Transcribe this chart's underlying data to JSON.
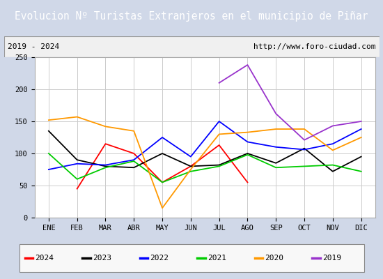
{
  "title": "Evolucion Nº Turistas Extranjeros en el municipio de Piñar",
  "subtitle_left": "2019 - 2024",
  "subtitle_right": "http://www.foro-ciudad.com",
  "months": [
    "ENE",
    "FEB",
    "MAR",
    "ABR",
    "MAY",
    "JUN",
    "JUL",
    "AGO",
    "SEP",
    "OCT",
    "NOV",
    "DIC"
  ],
  "series": {
    "2024": {
      "color": "#ff0000",
      "data": [
        null,
        45,
        115,
        100,
        55,
        80,
        113,
        55,
        null,
        null,
        null,
        null
      ]
    },
    "2023": {
      "color": "#000000",
      "data": [
        135,
        90,
        80,
        78,
        100,
        80,
        82,
        100,
        85,
        108,
        72,
        95
      ]
    },
    "2022": {
      "color": "#0000ff",
      "data": [
        75,
        84,
        82,
        90,
        125,
        95,
        150,
        118,
        110,
        106,
        115,
        138
      ]
    },
    "2021": {
      "color": "#00cc00",
      "data": [
        100,
        60,
        78,
        88,
        55,
        72,
        80,
        98,
        78,
        80,
        82,
        72
      ]
    },
    "2020": {
      "color": "#ff9900",
      "data": [
        152,
        157,
        142,
        135,
        15,
        75,
        130,
        133,
        138,
        138,
        105,
        125
      ]
    },
    "2019": {
      "color": "#9933cc",
      "data": [
        null,
        null,
        null,
        null,
        null,
        null,
        210,
        238,
        162,
        121,
        143,
        150
      ]
    }
  },
  "ylim": [
    0,
    250
  ],
  "yticks": [
    0,
    50,
    100,
    150,
    200,
    250
  ],
  "title_bg_color": "#4472c4",
  "title_text_color": "#ffffff",
  "plot_bg_color": "#ffffff",
  "grid_color": "#cccccc",
  "fig_bg_color": "#d0d8e8",
  "legend_order": [
    "2024",
    "2023",
    "2022",
    "2021",
    "2020",
    "2019"
  ]
}
